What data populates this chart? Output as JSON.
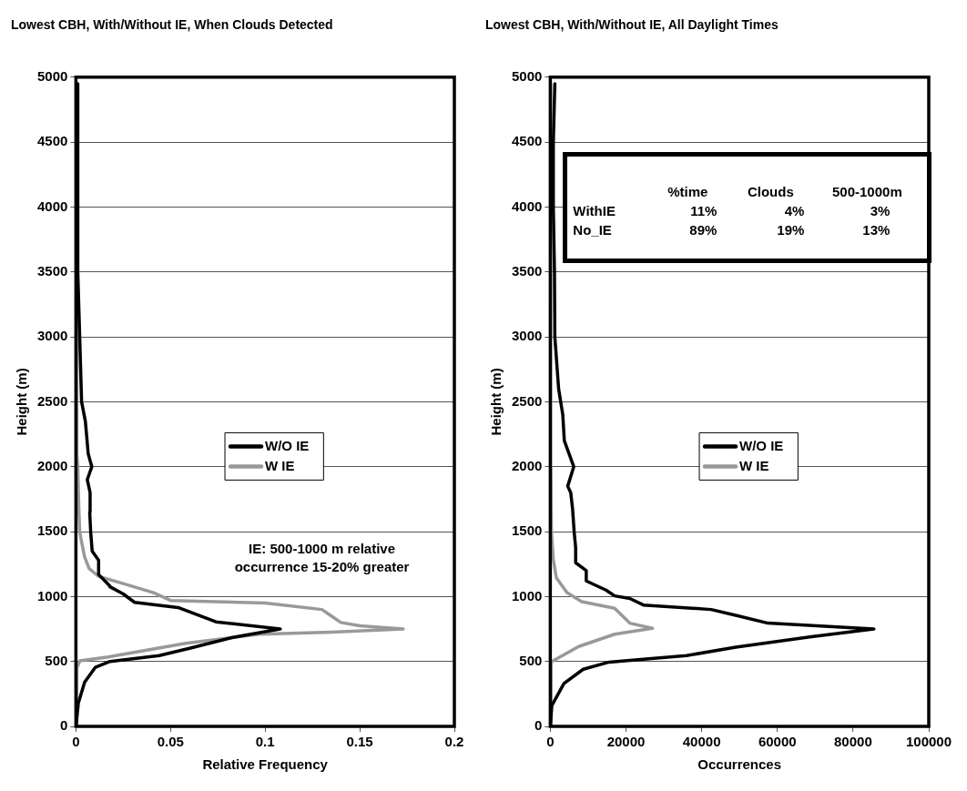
{
  "chart_data": [
    {
      "type": "line",
      "title": "Lowest CBH, With/Without IE, When Clouds Detected",
      "xlabel": "Relative Frequency",
      "ylabel": "Height (m)",
      "xlim": [
        0,
        0.2
      ],
      "xticks": [
        0,
        0.05,
        0.1,
        0.15,
        0.2
      ],
      "ylim": [
        0,
        5000
      ],
      "yticks": [
        0,
        500,
        1000,
        1500,
        2000,
        2500,
        3000,
        3500,
        4000,
        4500,
        5000
      ],
      "grid": "y",
      "legend": "center",
      "marker": "none",
      "line_style": "solid",
      "annotations": [
        "IE: 500-1000 m relative occurrence 15-20% greater"
      ],
      "series": [
        {
          "name": "W/O IE",
          "color": "#000000",
          "x": [
            0,
            0.0013,
            0.0046,
            0.0103,
            0.018,
            0.044,
            0.061,
            0.083,
            0.108,
            0.074,
            0.054,
            0.031,
            0.025,
            0.018,
            0.018,
            0.012,
            0.012,
            0.0086,
            0.0078,
            0.0073,
            0.0075,
            0.006,
            0.0084,
            0.0065,
            0.005,
            0.003,
            0.002,
            0.001,
            0.001
          ],
          "values": [
            0,
            180,
            340,
            455,
            500,
            545,
            605,
            685,
            750,
            805,
            915,
            955,
            1020,
            1075,
            1080,
            1170,
            1280,
            1350,
            1500,
            1650,
            1800,
            1900,
            2000,
            2100,
            2350,
            2500,
            3000,
            3500,
            4950
          ]
        },
        {
          "name": "W IE",
          "color": "#999999",
          "x": [
            0.0005,
            0.0005,
            0.0021,
            0.017,
            0.058,
            0.097,
            0.135,
            0.173,
            0.15,
            0.14,
            0.135,
            0.13,
            0.1,
            0.05,
            0.041,
            0.025,
            0.012,
            0.007,
            0.0046,
            0.003,
            0.002,
            0.0015,
            0.001,
            0.0005,
            0.0005
          ],
          "values": [
            0,
            450,
            505,
            535,
            640,
            710,
            725,
            750,
            775,
            800,
            850,
            900,
            950,
            970,
            1030,
            1100,
            1155,
            1215,
            1305,
            1420,
            1500,
            1700,
            2000,
            2100,
            4950
          ]
        }
      ]
    },
    {
      "type": "line",
      "title": "Lowest CBH, With/Without IE, All Daylight Times",
      "xlabel": "Occurrences",
      "ylabel": "Height (m)",
      "xlim": [
        0,
        100000
      ],
      "xticks": [
        0,
        20000,
        40000,
        60000,
        80000,
        100000
      ],
      "ylim": [
        0,
        5000
      ],
      "yticks": [
        0,
        500,
        1000,
        1500,
        2000,
        2500,
        3000,
        3500,
        4000,
        4500,
        5000
      ],
      "grid": "y",
      "legend": "center",
      "marker": "none",
      "line_style": "solid",
      "annotations": [
        "%time",
        "Clouds",
        "500-1000m",
        "WithIE",
        "11%",
        "4%",
        "3%",
        "No_IE",
        "89%",
        "19%",
        "13%"
      ],
      "series": [
        {
          "name": "W/O IE",
          "color": "#000000",
          "x": [
            0,
            400,
            3600,
            8700,
            15500,
            26000,
            36000,
            49000,
            69000,
            85500,
            57500,
            49000,
            42500,
            24600,
            21000,
            17000,
            14700,
            9500,
            9500,
            6700,
            6700,
            6300,
            5900,
            5400,
            4600,
            6200,
            3700,
            3300,
            2200,
            1200,
            1100,
            800,
            800,
            1200
          ],
          "values": [
            0,
            160,
            330,
            440,
            495,
            520,
            545,
            610,
            690,
            750,
            795,
            855,
            900,
            935,
            985,
            1005,
            1050,
            1120,
            1200,
            1260,
            1375,
            1500,
            1670,
            1800,
            1850,
            2000,
            2200,
            2400,
            2600,
            3000,
            3500,
            4000,
            4500,
            4950
          ]
        },
        {
          "name": "W IE",
          "color": "#999999",
          "x": [
            200,
            200,
            400,
            3200,
            7500,
            17000,
            27000,
            21000,
            17000,
            8300,
            4400,
            1600,
            800,
            300,
            150,
            100
          ],
          "values": [
            0,
            480,
            500,
            545,
            615,
            710,
            755,
            795,
            910,
            960,
            1030,
            1145,
            1285,
            1500,
            2000,
            4950
          ]
        }
      ]
    }
  ]
}
